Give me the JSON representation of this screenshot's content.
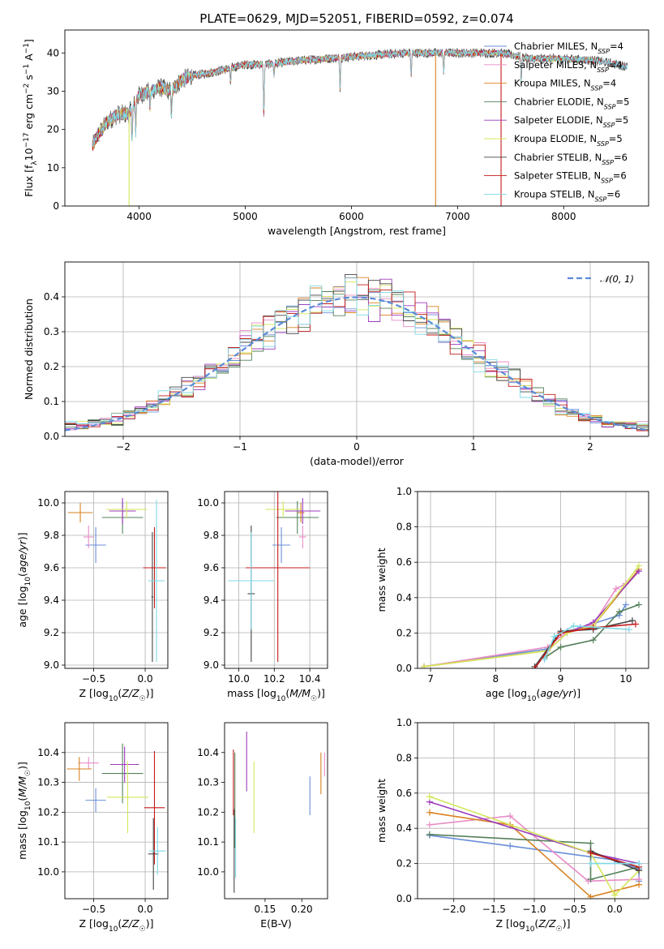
{
  "title": "PLATE=0629, MJD=52051, FIBERID=0592, z=0.074",
  "colors": [
    "#6a8fd8",
    "#e88cc6",
    "#d98221",
    "#55805a",
    "#9c3bbd",
    "#d4e65a",
    "#444444",
    "#c41a1a",
    "#7fd8e6"
  ],
  "chart_data": [
    {
      "id": "spectrum",
      "type": "line",
      "xlabel": "wavelength [Angstrom, rest frame]",
      "ylabel": "Flux [f_λ 10^-17 erg cm^-2 s^-1 A^-1]",
      "xlim": [
        3300,
        8800
      ],
      "ylim": [
        0,
        46
      ],
      "xticks": [
        "4000",
        "5000",
        "6000",
        "7000",
        "8000"
      ],
      "yticks": [
        "0",
        "10",
        "20",
        "30",
        "40"
      ],
      "legend_position": "top-right",
      "series": [
        {
          "name": "Chabrier MILES, N_SSP=4",
          "label_main": "Chabrier MILES, N",
          "label_sub": "SSP",
          "label_tail": "=4"
        },
        {
          "name": "Salpeter MILES, N_SSP=4",
          "label_main": "Salpeter MILES, N",
          "label_sub": "SSP",
          "label_tail": "=4"
        },
        {
          "name": "Kroupa MILES, N_SSP=4",
          "label_main": "Kroupa MILES, N",
          "label_sub": "SSP",
          "label_tail": "=4"
        },
        {
          "name": "Chabrier ELODIE, N_SSP=5",
          "label_main": "Chabrier ELODIE, N",
          "label_sub": "SSP",
          "label_tail": "=5"
        },
        {
          "name": "Salpeter ELODIE, N_SSP=5",
          "label_main": "Salpeter ELODIE, N",
          "label_sub": "SSP",
          "label_tail": "=5"
        },
        {
          "name": "Kroupa ELODIE, N_SSP=5",
          "label_main": "Kroupa ELODIE, N",
          "label_sub": "SSP",
          "label_tail": "=5"
        },
        {
          "name": "Chabrier STELIB, N_SSP=6",
          "label_main": "Chabrier STELIB, N",
          "label_sub": "SSP",
          "label_tail": "=6"
        },
        {
          "name": "Salpeter STELIB, N_SSP=6",
          "label_main": "Salpeter STELIB, N",
          "label_sub": "SSP",
          "label_tail": "=6"
        },
        {
          "name": "Kroupa STELIB, N_SSP=6",
          "label_main": "Kroupa STELIB, N",
          "label_sub": "SSP",
          "label_tail": "=6"
        }
      ],
      "spectrum_knots": {
        "x": [
          3550,
          3600,
          3700,
          3800,
          3900,
          4000,
          4100,
          4200,
          4300,
          4400,
          4500,
          4700,
          5000,
          5200,
          5500,
          6000,
          6500,
          7000,
          7400,
          7700,
          8000,
          8300,
          8600
        ],
        "y": [
          15,
          18,
          22,
          24,
          24,
          29,
          30,
          31,
          30,
          33,
          34,
          35,
          37,
          37,
          38,
          39,
          40,
          40,
          40,
          38.5,
          38.5,
          38,
          36.5
        ]
      },
      "absorption_lines": [
        {
          "x": 3934,
          "depth": 8
        },
        {
          "x": 3968,
          "depth": 8
        },
        {
          "x": 4102,
          "depth": 4
        },
        {
          "x": 4305,
          "depth": 6
        },
        {
          "x": 4861,
          "depth": 4
        },
        {
          "x": 5175,
          "depth": 13
        },
        {
          "x": 5270,
          "depth": 3
        },
        {
          "x": 5893,
          "depth": 8
        },
        {
          "x": 6563,
          "depth": 6
        },
        {
          "x": 6870,
          "depth": 5
        },
        {
          "x": 7600,
          "depth": 7
        }
      ],
      "dropout_lines": [
        {
          "x": 3905,
          "to": 0
        },
        {
          "x": 6793,
          "to": 0
        },
        {
          "x": 7410,
          "to": 0
        }
      ]
    },
    {
      "id": "residuals",
      "type": "step",
      "xlabel": "(data-model)/error",
      "ylabel": "Normed distribution",
      "xlim": [
        -2.5,
        2.5
      ],
      "ylim": [
        0,
        0.5
      ],
      "xticks": [
        "−2",
        "−1",
        "0",
        "1",
        "2"
      ],
      "yticks": [
        "0.0",
        "0.1",
        "0.2",
        "0.3",
        "0.4"
      ],
      "grid": true,
      "legend_label": "𝒩(0, 1)",
      "legend_position": "top-right",
      "reference_curve": "standard normal density",
      "bin_width": 0.1
    },
    {
      "id": "age-vs-Z",
      "type": "errorbar",
      "xlabel": "Z [log10(Z/Z☉)]",
      "ylabel": "age  [log10(age/yr)]",
      "xlim": [
        -0.78,
        0.22
      ],
      "ylim": [
        8.98,
        10.07
      ],
      "xticks": [
        {
          "v": -0.5,
          "t": "−0.5"
        },
        {
          "v": 0.0,
          "t": "0.0"
        }
      ],
      "yticks": [
        {
          "v": 9.0,
          "t": "9.0"
        },
        {
          "v": 9.2,
          "t": "9.2"
        },
        {
          "v": 9.4,
          "t": "9.4"
        },
        {
          "v": 9.6,
          "t": "9.6"
        },
        {
          "v": 9.8,
          "t": "9.8"
        },
        {
          "v": 10.0,
          "t": "10.0"
        }
      ],
      "grid": true,
      "points": [
        {
          "s": 0,
          "x": -0.48,
          "xe": 0.1,
          "y": 9.74,
          "ye": 0.11
        },
        {
          "s": 1,
          "x": -0.55,
          "xe": 0.05,
          "y": 9.79,
          "ye": 0.07
        },
        {
          "s": 2,
          "x": -0.63,
          "xe": 0.12,
          "y": 9.94,
          "ye": 0.06
        },
        {
          "s": 3,
          "x": -0.22,
          "xe": 0.2,
          "y": 9.91,
          "ye": 0.1
        },
        {
          "s": 4,
          "x": -0.22,
          "xe": 0.13,
          "y": 9.95,
          "ye": 0.08
        },
        {
          "s": 5,
          "x": -0.18,
          "xe": 0.2,
          "y": 9.96,
          "ye": 0.05
        },
        {
          "s": 6,
          "x": 0.07,
          "xe": 0.01,
          "y": 9.42,
          "ye": 0.4
        },
        {
          "s": 7,
          "x": 0.09,
          "xe": 0.11,
          "y": 9.6,
          "ye": 0.25
        },
        {
          "s": 8,
          "x": 0.11,
          "xe": 0.08,
          "y": 9.52,
          "ye": 0.5
        }
      ]
    },
    {
      "id": "age-vs-mass",
      "type": "errorbar",
      "xlabel": "mass [log10(M/M☉)]",
      "ylabel": "",
      "xlim": [
        9.92,
        10.5
      ],
      "ylim": [
        8.98,
        10.07
      ],
      "xticks": [
        {
          "v": 10.0,
          "t": "10.0"
        },
        {
          "v": 10.2,
          "t": "10.2"
        },
        {
          "v": 10.4,
          "t": "10.4"
        }
      ],
      "yticks": [
        {
          "v": 9.0,
          "t": "9.0"
        },
        {
          "v": 9.2,
          "t": "9.2"
        },
        {
          "v": 9.4,
          "t": "9.4"
        },
        {
          "v": 9.6,
          "t": "9.6"
        },
        {
          "v": 9.8,
          "t": "9.8"
        },
        {
          "v": 10.0,
          "t": "10.0"
        }
      ],
      "grid": true,
      "points": [
        {
          "s": 0,
          "x": 10.24,
          "xe": 0.05,
          "y": 9.74,
          "ye": 0.11
        },
        {
          "s": 1,
          "x": 10.36,
          "xe": 0.02,
          "y": 9.79,
          "ye": 0.07
        },
        {
          "s": 2,
          "x": 10.35,
          "xe": 0.02,
          "y": 9.94,
          "ye": 0.06
        },
        {
          "s": 3,
          "x": 10.33,
          "xe": 0.12,
          "y": 9.91,
          "ye": 0.1
        },
        {
          "s": 4,
          "x": 10.36,
          "xe": 0.1,
          "y": 9.95,
          "ye": 0.08
        },
        {
          "s": 5,
          "x": 10.25,
          "xe": 0.1,
          "y": 9.96,
          "ye": 0.05
        },
        {
          "s": 6,
          "x": 10.07,
          "xe": 0.02,
          "y": 9.44,
          "ye": 0.42
        },
        {
          "s": 7,
          "x": 10.22,
          "xe": 0.18,
          "y": 9.6,
          "ye": 0.58
        },
        {
          "s": 8,
          "x": 10.07,
          "xe": 0.13,
          "y": 9.52,
          "ye": 0.3
        }
      ]
    },
    {
      "id": "massweight-vs-age",
      "type": "line",
      "xlabel": "age  [log10(age/yr)]",
      "ylabel": "mass weight",
      "xlim": [
        6.8,
        10.35
      ],
      "ylim": [
        0,
        1.0
      ],
      "xticks": [
        {
          "v": 7,
          "t": "7"
        },
        {
          "v": 8,
          "t": "8"
        },
        {
          "v": 9,
          "t": "9"
        },
        {
          "v": 10,
          "t": "10"
        }
      ],
      "yticks": [
        {
          "v": 0,
          "t": "0.0"
        },
        {
          "v": 0.2,
          "t": "0.2"
        },
        {
          "v": 0.4,
          "t": "0.4"
        },
        {
          "v": 0.6,
          "t": "0.6"
        },
        {
          "v": 0.8,
          "t": "0.8"
        },
        {
          "v": 1.0,
          "t": "1.0"
        }
      ],
      "grid": true,
      "series": [
        {
          "s": 0,
          "x": [
            6.9,
            8.8,
            9.0,
            9.3,
            9.9,
            10.0
          ],
          "y": [
            0.01,
            0.11,
            0.2,
            0.23,
            0.3,
            0.36
          ]
        },
        {
          "s": 1,
          "x": [
            6.9,
            8.8,
            9.1,
            9.5,
            9.85,
            10.0
          ],
          "y": [
            0.01,
            0.12,
            0.21,
            0.25,
            0.45,
            0.48
          ]
        },
        {
          "s": 2,
          "x": [
            6.9,
            8.8,
            9.0,
            9.5,
            10.2
          ],
          "y": [
            0.01,
            0.1,
            0.2,
            0.24,
            0.56
          ]
        },
        {
          "s": 3,
          "x": [
            8.75,
            9.0,
            9.5,
            9.9,
            10.2
          ],
          "y": [
            0.06,
            0.12,
            0.16,
            0.32,
            0.36
          ]
        },
        {
          "s": 4,
          "x": [
            8.8,
            9.1,
            9.5,
            10.2
          ],
          "y": [
            0.1,
            0.2,
            0.26,
            0.55
          ]
        },
        {
          "s": 5,
          "x": [
            6.9,
            8.8,
            9.1,
            9.5,
            10.2
          ],
          "y": [
            0.01,
            0.1,
            0.2,
            0.24,
            0.58
          ]
        },
        {
          "s": 6,
          "x": [
            8.6,
            9.0,
            9.5,
            10.1
          ],
          "y": [
            0.01,
            0.21,
            0.22,
            0.27
          ]
        },
        {
          "s": 7,
          "x": [
            8.6,
            9.0,
            9.5,
            10.15
          ],
          "y": [
            0.0,
            0.2,
            0.23,
            0.25
          ]
        },
        {
          "s": 8,
          "x": [
            8.75,
            8.9,
            9.2,
            10.05
          ],
          "y": [
            0.05,
            0.18,
            0.24,
            0.22
          ]
        }
      ]
    },
    {
      "id": "mass-vs-Z",
      "type": "errorbar",
      "xlabel": "Z [log10(Z/Z☉)]",
      "ylabel": "mass [log10(M/M☉)]",
      "xlim": [
        -0.78,
        0.22
      ],
      "ylim": [
        9.91,
        10.5
      ],
      "xticks": [
        {
          "v": -0.5,
          "t": "−0.5"
        },
        {
          "v": 0.0,
          "t": "0.0"
        }
      ],
      "yticks": [
        {
          "v": 10.0,
          "t": "10.0"
        },
        {
          "v": 10.1,
          "t": "10.1"
        },
        {
          "v": 10.2,
          "t": "10.2"
        },
        {
          "v": 10.3,
          "t": "10.3"
        },
        {
          "v": 10.4,
          "t": "10.4"
        }
      ],
      "grid": true,
      "points": [
        {
          "s": 0,
          "x": -0.48,
          "xe": 0.1,
          "y": 10.24,
          "ye": 0.04
        },
        {
          "s": 1,
          "x": -0.55,
          "xe": 0.1,
          "y": 10.365,
          "ye": 0.02
        },
        {
          "s": 2,
          "x": -0.64,
          "xe": 0.12,
          "y": 10.345,
          "ye": 0.04
        },
        {
          "s": 3,
          "x": -0.22,
          "xe": 0.2,
          "y": 10.33,
          "ye": 0.1
        },
        {
          "s": 4,
          "x": -0.2,
          "xe": 0.14,
          "y": 10.36,
          "ye": 0.06
        },
        {
          "s": 5,
          "x": -0.17,
          "xe": 0.2,
          "y": 10.25,
          "ye": 0.12
        },
        {
          "s": 6,
          "x": 0.08,
          "xe": 0.05,
          "y": 10.06,
          "ye": 0.12
        },
        {
          "s": 7,
          "x": 0.09,
          "xe": 0.1,
          "y": 10.215,
          "ye": 0.19
        },
        {
          "s": 8,
          "x": 0.12,
          "xe": 0.08,
          "y": 10.07,
          "ye": 0.08
        }
      ]
    },
    {
      "id": "mass-vs-EBV",
      "type": "errorbar",
      "xlabel": "E(B-V)",
      "ylabel": "",
      "xlim": [
        0.095,
        0.235
      ],
      "ylim": [
        9.91,
        10.5
      ],
      "xticks": [
        {
          "v": 0.15,
          "t": "0.15"
        },
        {
          "v": 0.2,
          "t": "0.20"
        }
      ],
      "yticks": [
        {
          "v": 10.0,
          "t": "10.0"
        },
        {
          "v": 10.1,
          "t": "10.1"
        },
        {
          "v": 10.2,
          "t": "10.2"
        },
        {
          "v": 10.3,
          "t": "10.3"
        },
        {
          "v": 10.4,
          "t": "10.4"
        }
      ],
      "grid": false,
      "points": [
        {
          "s": 0,
          "x": 0.211,
          "xe": 0,
          "y": 10.255,
          "ye": 0.065
        },
        {
          "s": 1,
          "x": 0.231,
          "xe": 0,
          "y": 10.36,
          "ye": 0.04
        },
        {
          "s": 2,
          "x": 0.226,
          "xe": 0,
          "y": 10.33,
          "ye": 0.07
        },
        {
          "s": 3,
          "x": 0.109,
          "xe": 0,
          "y": 10.24,
          "ye": 0.16
        },
        {
          "s": 4,
          "x": 0.125,
          "xe": 0,
          "y": 10.37,
          "ye": 0.1
        },
        {
          "s": 5,
          "x": 0.135,
          "xe": 0,
          "y": 10.25,
          "ye": 0.12
        },
        {
          "s": 6,
          "x": 0.108,
          "xe": 0,
          "y": 10.07,
          "ye": 0.14
        },
        {
          "s": 7,
          "x": 0.107,
          "xe": 0,
          "y": 10.3,
          "ye": 0.11
        },
        {
          "s": 8,
          "x": 0.11,
          "xe": 0,
          "y": 10.08,
          "ye": 0.1
        }
      ]
    },
    {
      "id": "massweight-vs-Z",
      "type": "line",
      "xlabel": "Z [log10(Z/Z☉)]",
      "ylabel": "mass weight",
      "xlim": [
        -2.45,
        0.42
      ],
      "ylim": [
        0,
        1.0
      ],
      "xticks": [
        {
          "v": -2.0,
          "t": "−2.0"
        },
        {
          "v": -1.5,
          "t": "−1.5"
        },
        {
          "v": -1.0,
          "t": "−1.0"
        },
        {
          "v": -0.5,
          "t": "−0.5"
        },
        {
          "v": 0.0,
          "t": "0.0"
        }
      ],
      "yticks": [
        {
          "v": 0,
          "t": "0.0"
        },
        {
          "v": 0.2,
          "t": "0.2"
        },
        {
          "v": 0.4,
          "t": "0.4"
        },
        {
          "v": 0.6,
          "t": "0.6"
        },
        {
          "v": 0.8,
          "t": "0.8"
        },
        {
          "v": 1.0,
          "t": "1.0"
        }
      ],
      "grid": true,
      "series": [
        {
          "s": 0,
          "x": [
            -2.3,
            -1.3,
            0.0,
            0.3,
            0.3
          ],
          "y": [
            0.36,
            0.3,
            0.22,
            0.17,
            0.1
          ]
        },
        {
          "s": 1,
          "x": [
            -2.3,
            -1.3,
            -0.33,
            0.3
          ],
          "y": [
            0.42,
            0.47,
            0.1,
            0.11
          ]
        },
        {
          "s": 2,
          "x": [
            -2.3,
            -1.3,
            -0.3,
            0.3
          ],
          "y": [
            0.49,
            0.42,
            0.01,
            0.08
          ]
        },
        {
          "s": 3,
          "x": [
            -2.3,
            -0.3,
            -0.3,
            0.3
          ],
          "y": [
            0.365,
            0.315,
            0.11,
            0.18
          ]
        },
        {
          "s": 4,
          "x": [
            -2.3,
            -0.3,
            0.3
          ],
          "y": [
            0.55,
            0.26,
            0.2
          ]
        },
        {
          "s": 5,
          "x": [
            -2.3,
            -0.3,
            0.0,
            0.3
          ],
          "y": [
            0.58,
            0.26,
            0.02,
            0.16
          ]
        },
        {
          "s": 6,
          "x": [
            -0.3,
            0.3
          ],
          "y": [
            0.27,
            0.16
          ]
        },
        {
          "s": 7,
          "x": [
            -0.3,
            0.3
          ],
          "y": [
            0.26,
            0.18
          ]
        },
        {
          "s": 8,
          "x": [
            -0.3,
            0.3
          ],
          "y": [
            0.2,
            0.2
          ]
        }
      ]
    }
  ]
}
